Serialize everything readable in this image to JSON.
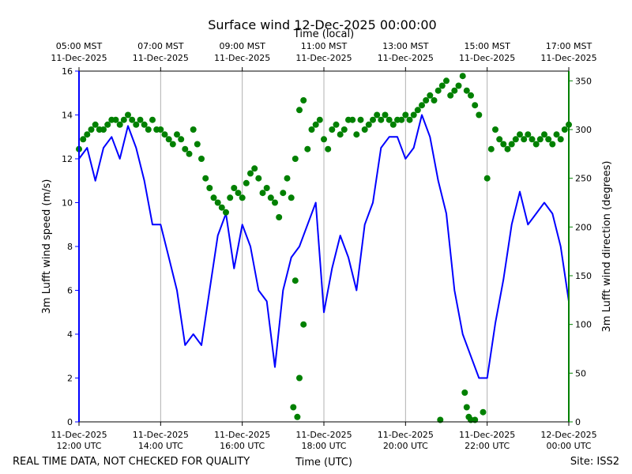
{
  "chart_data": {
    "type": "line+scatter",
    "title": "Surface wind 12-Dec-2025 00:00:00",
    "x_top_label": "Time (local)",
    "x_bottom_label": "Time (UTC)",
    "y_left_label": "3m Lufft wind speed (m/s)",
    "y_right_label": "3m Lufft wind direction (degrees)",
    "footer_left": "REAL TIME DATA, NOT CHECKED FOR QUALITY",
    "footer_right": "Site: ISS2",
    "x_range_hours": [
      0,
      12
    ],
    "y_left_range": [
      0,
      16
    ],
    "y_right_range": [
      0,
      360
    ],
    "y_left_ticks": [
      0,
      2,
      4,
      6,
      8,
      10,
      12,
      14,
      16
    ],
    "y_right_ticks": [
      0,
      50,
      100,
      150,
      200,
      250,
      300,
      350
    ],
    "bottom_ticks": [
      {
        "hour": 0,
        "line1": "11-Dec-2025",
        "line2": "12:00 UTC"
      },
      {
        "hour": 2,
        "line1": "11-Dec-2025",
        "line2": "14:00 UTC"
      },
      {
        "hour": 4,
        "line1": "11-Dec-2025",
        "line2": "16:00 UTC"
      },
      {
        "hour": 6,
        "line1": "11-Dec-2025",
        "line2": "18:00 UTC"
      },
      {
        "hour": 8,
        "line1": "11-Dec-2025",
        "line2": "20:00 UTC"
      },
      {
        "hour": 10,
        "line1": "11-Dec-2025",
        "line2": "22:00 UTC"
      },
      {
        "hour": 12,
        "line1": "12-Dec-2025",
        "line2": "00:00 UTC"
      }
    ],
    "top_ticks": [
      {
        "hour": 0,
        "line1": "05:00 MST",
        "line2": "11-Dec-2025"
      },
      {
        "hour": 2,
        "line1": "07:00 MST",
        "line2": "11-Dec-2025"
      },
      {
        "hour": 4,
        "line1": "09:00 MST",
        "line2": "11-Dec-2025"
      },
      {
        "hour": 6,
        "line1": "11:00 MST",
        "line2": "11-Dec-2025"
      },
      {
        "hour": 8,
        "line1": "13:00 MST",
        "line2": "11-Dec-2025"
      },
      {
        "hour": 10,
        "line1": "15:00 MST",
        "line2": "11-Dec-2025"
      },
      {
        "hour": 12,
        "line1": "17:00 MST",
        "line2": "11-Dec-2025"
      }
    ],
    "colors": {
      "speed": "#0000ff",
      "direction": "#008000",
      "grid": "#b0b0b0"
    },
    "series": [
      {
        "name": "3m Lufft wind speed (m/s)",
        "axis": "left",
        "style": "line",
        "x_hours": [
          0,
          0.2,
          0.4,
          0.6,
          0.8,
          1.0,
          1.2,
          1.4,
          1.6,
          1.8,
          2.0,
          2.2,
          2.4,
          2.6,
          2.8,
          3.0,
          3.2,
          3.4,
          3.6,
          3.8,
          4.0,
          4.2,
          4.4,
          4.6,
          4.8,
          5.0,
          5.2,
          5.4,
          5.6,
          5.8,
          6.0,
          6.2,
          6.4,
          6.6,
          6.8,
          7.0,
          7.2,
          7.4,
          7.6,
          7.8,
          8.0,
          8.2,
          8.4,
          8.6,
          8.8,
          9.0,
          9.2,
          9.4,
          9.6,
          9.8,
          10.0,
          10.2,
          10.4,
          10.6,
          10.8,
          11.0,
          11.2,
          11.4,
          11.6,
          11.8,
          12.0
        ],
        "values": [
          12,
          12.5,
          11,
          12.5,
          13,
          12,
          13.5,
          12.5,
          11,
          9,
          9,
          7.5,
          6,
          3.5,
          4,
          3.5,
          6,
          8.5,
          9.5,
          7,
          9,
          8,
          6,
          5.5,
          2.5,
          6,
          7.5,
          8,
          9,
          10,
          5,
          7,
          8.5,
          7.5,
          6,
          9,
          10,
          12.5,
          13,
          13,
          12,
          12.5,
          14,
          13,
          11,
          9.5,
          6,
          4,
          3,
          2,
          2,
          4.5,
          6.5,
          9,
          10.5,
          9,
          9.5,
          10,
          9.5,
          8,
          5.5
        ]
      },
      {
        "name": "3m Lufft wind direction (degrees)",
        "axis": "right",
        "style": "scatter",
        "x_hours": [
          0,
          0.1,
          0.2,
          0.3,
          0.4,
          0.5,
          0.6,
          0.7,
          0.8,
          0.9,
          1.0,
          1.1,
          1.2,
          1.3,
          1.4,
          1.5,
          1.6,
          1.7,
          1.8,
          1.9,
          2.0,
          2.1,
          2.2,
          2.3,
          2.4,
          2.5,
          2.6,
          2.7,
          2.8,
          2.9,
          3.0,
          3.1,
          3.2,
          3.3,
          3.4,
          3.5,
          3.6,
          3.7,
          3.8,
          3.9,
          4.0,
          4.1,
          4.2,
          4.3,
          4.4,
          4.5,
          4.6,
          4.7,
          4.8,
          4.9,
          5.0,
          5.1,
          5.2,
          5.3,
          5.4,
          5.5,
          5.6,
          5.7,
          5.8,
          5.9,
          6.0,
          6.1,
          6.2,
          6.3,
          6.4,
          6.5,
          6.6,
          6.7,
          6.8,
          6.9,
          7.0,
          7.1,
          7.2,
          7.3,
          7.4,
          7.5,
          7.6,
          7.7,
          7.8,
          7.9,
          8.0,
          8.1,
          8.2,
          8.3,
          8.4,
          8.5,
          8.6,
          8.7,
          8.8,
          8.9,
          9.0,
          9.1,
          9.2,
          9.3,
          9.4,
          9.5,
          9.6,
          9.7,
          9.8,
          9.9,
          10.0,
          10.1,
          10.2,
          10.3,
          10.4,
          10.5,
          10.6,
          10.7,
          10.8,
          10.9,
          11.0,
          11.1,
          11.2,
          11.3,
          11.4,
          11.5,
          11.6,
          11.7,
          11.8,
          11.9,
          12.0
        ],
        "values": [
          280,
          290,
          295,
          300,
          305,
          300,
          300,
          305,
          310,
          310,
          305,
          310,
          315,
          310,
          305,
          310,
          305,
          300,
          310,
          300,
          300,
          295,
          290,
          285,
          295,
          290,
          280,
          275,
          300,
          285,
          270,
          250,
          240,
          230,
          225,
          220,
          215,
          230,
          240,
          235,
          230,
          245,
          255,
          260,
          250,
          235,
          240,
          230,
          225,
          210,
          235,
          250,
          230,
          270,
          320,
          330,
          280,
          300,
          305,
          310,
          290,
          280,
          300,
          305,
          295,
          300,
          310,
          310,
          295,
          310,
          300,
          305,
          310,
          315,
          310,
          315,
          310,
          305,
          310,
          310,
          315,
          310,
          315,
          320,
          325,
          330,
          335,
          330,
          340,
          345,
          350,
          335,
          340,
          345,
          355,
          340,
          335,
          325,
          315,
          10,
          250,
          280,
          300,
          290,
          285,
          280,
          285,
          290,
          295,
          290,
          295,
          290,
          285,
          290,
          295,
          290,
          285,
          295,
          290,
          300,
          305
        ],
        "outliers": [
          {
            "x_hour": 5.25,
            "value": 15
          },
          {
            "x_hour": 5.35,
            "value": 5
          },
          {
            "x_hour": 5.5,
            "value": 100
          },
          {
            "x_hour": 5.4,
            "value": 45
          },
          {
            "x_hour": 5.3,
            "value": 145
          },
          {
            "x_hour": 8.85,
            "value": 2
          },
          {
            "x_hour": 9.45,
            "value": 30
          },
          {
            "x_hour": 9.55,
            "value": 5
          },
          {
            "x_hour": 9.5,
            "value": 15
          },
          {
            "x_hour": 9.6,
            "value": 2
          },
          {
            "x_hour": 9.7,
            "value": 2
          }
        ]
      }
    ]
  }
}
